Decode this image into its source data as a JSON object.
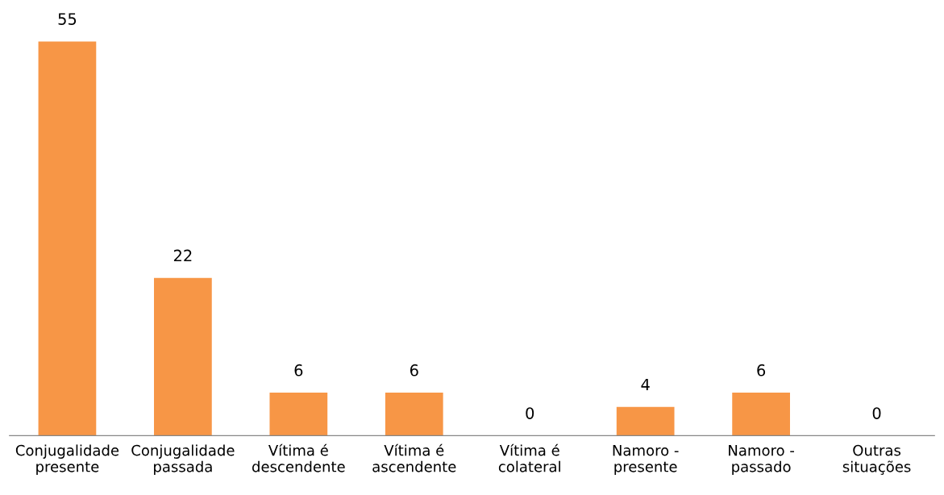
{
  "chart_data": {
    "type": "bar",
    "categories": [
      "Conjugalidade\npresente",
      "Conjugalidade\npassada",
      "Vítima é\ndescendente",
      "Vítima é\nascendente",
      "Vítima é\ncolateral",
      "Namoro -\npresente",
      "Namoro -\npassado",
      "Outras\nsituações"
    ],
    "values": [
      55,
      22,
      6,
      6,
      0,
      4,
      6,
      0
    ],
    "color": "#f79646",
    "data_labels": true,
    "grid": false,
    "legend": false
  }
}
